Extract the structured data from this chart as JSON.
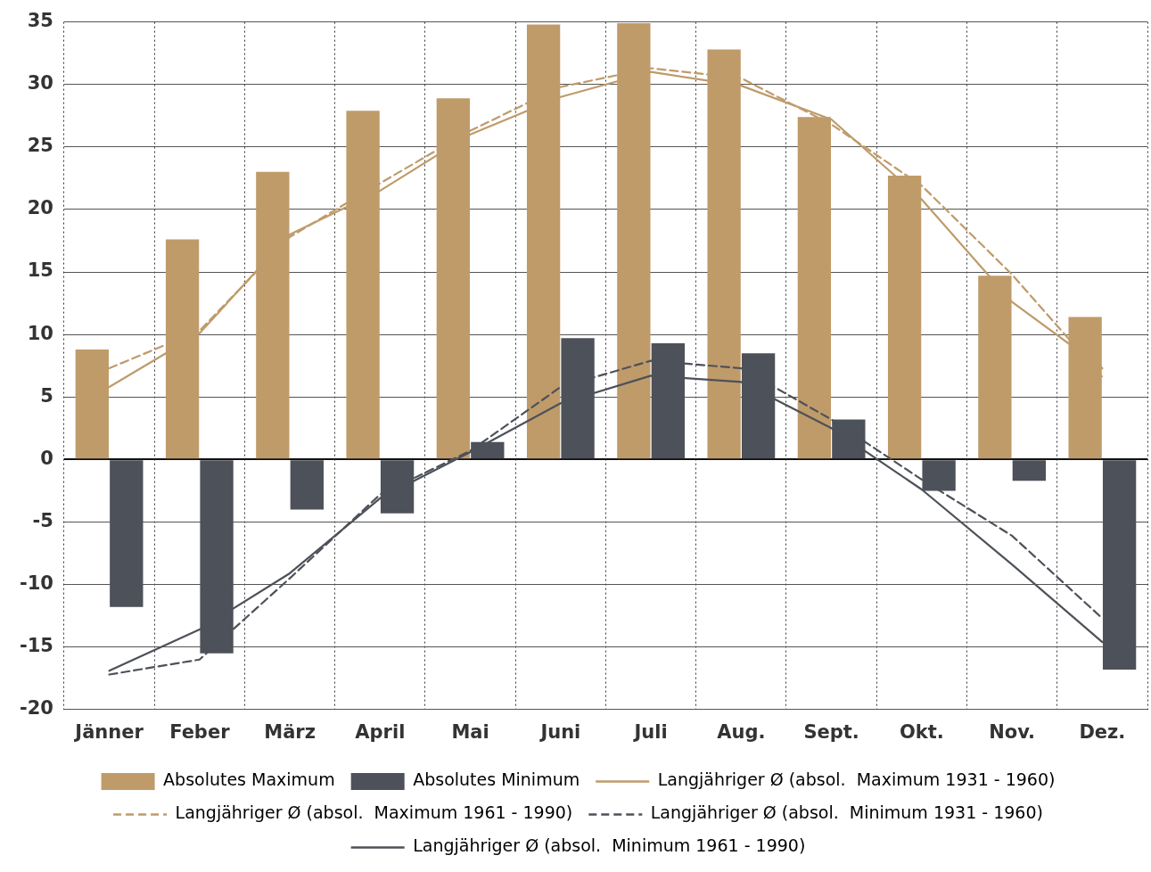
{
  "chart_data": {
    "type": "bar",
    "categories": [
      "Jänner",
      "Feber",
      "März",
      "April",
      "Mai",
      "Juni",
      "Juli",
      "Aug.",
      "Sept.",
      "Okt.",
      "Nov.",
      "Dez."
    ],
    "ylim": [
      -20,
      35
    ],
    "yticks": [
      -20,
      -15,
      -10,
      -5,
      0,
      5,
      10,
      15,
      20,
      25,
      30,
      35
    ],
    "grid": true,
    "legend": "bottom",
    "series": [
      {
        "name": "Absolutes Maximum",
        "color": "#bf9b6a",
        "values": [
          8.8,
          17.6,
          23.0,
          27.9,
          28.9,
          34.8,
          34.9,
          32.8,
          27.4,
          22.7,
          14.7,
          11.4
        ]
      },
      {
        "name": "Absolutes Minimum",
        "color": "#4d5159",
        "values": [
          -11.8,
          -15.5,
          -4.0,
          -4.3,
          1.4,
          9.7,
          9.3,
          8.5,
          3.2,
          -2.5,
          -1.7,
          -16.8
        ]
      },
      {
        "type": "line",
        "line_style": "solid",
        "name": "Langjähriger Ø (absol.  Maximum 1931 - 1960)",
        "color": "#bf9b6a",
        "values": [
          5.8,
          10.1,
          18.0,
          21.5,
          26.0,
          29.0,
          31.0,
          29.9,
          27.2,
          20.8,
          12.6,
          7.3
        ]
      },
      {
        "type": "line",
        "line_style": "dashed",
        "name": "Langjähriger Ø (absol.  Maximum 1961 - 1990)",
        "color": "#bf9b6a",
        "values": [
          7.3,
          10.3,
          17.8,
          22.1,
          26.3,
          29.8,
          31.3,
          30.5,
          26.8,
          21.9,
          14.8,
          6.6
        ]
      },
      {
        "type": "line",
        "line_style": "dashed",
        "name": "Langjähriger Ø (absol.  Minimum 1931 - 1960)",
        "color": "#4d5159",
        "values": [
          -17.2,
          -16.0,
          -9.5,
          -2.8,
          0.7,
          5.8,
          7.9,
          7.3,
          3.2,
          -1.6,
          -6.1,
          -12.7
        ]
      },
      {
        "type": "line",
        "line_style": "solid",
        "name": "Langjähriger Ø (absol.  Minimum 1961 - 1990)",
        "color": "#4d5159",
        "values": [
          -16.9,
          -13.6,
          -9.1,
          -3.1,
          0.6,
          4.5,
          6.7,
          6.2,
          2.5,
          -2.4,
          -8.4,
          -14.6
        ]
      }
    ]
  }
}
